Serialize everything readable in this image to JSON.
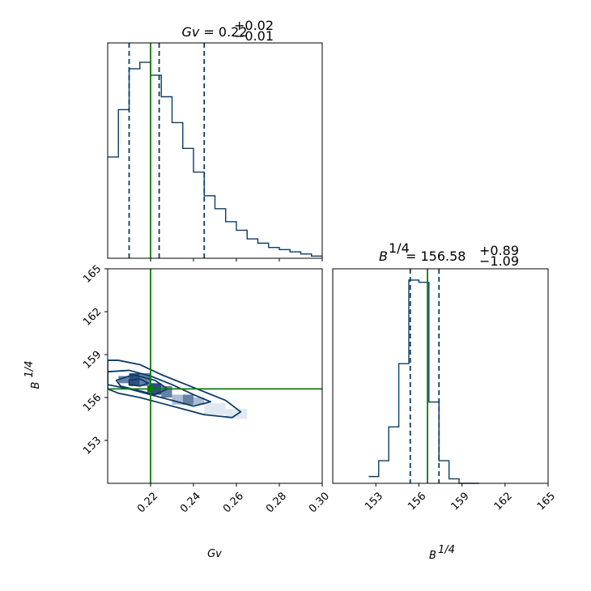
{
  "colors": {
    "hist": "#0b3c66",
    "contour": "#0b3c66",
    "truth": "#0a7a0a",
    "quantile": "#0b3c66",
    "shade_dark": "#08306b",
    "shade_mid": "#4a6b94",
    "shade_light": "#9fb3cc",
    "shade_faint": "#dbe4ee"
  },
  "chart_data": [
    {
      "type": "histogram",
      "panel": "Gv-marginal",
      "title": {
        "prefix": "Gv",
        "value": "0.22",
        "plus": "+0.02",
        "minus": "−0.01"
      },
      "xlim": [
        0.2,
        0.3
      ],
      "truth": 0.22,
      "quantiles": [
        0.21,
        0.224,
        0.245
      ],
      "bin_edges": [
        0.2,
        0.205,
        0.21,
        0.215,
        0.22,
        0.225,
        0.23,
        0.235,
        0.24,
        0.245,
        0.25,
        0.255,
        0.26,
        0.265,
        0.27,
        0.275,
        0.28,
        0.285,
        0.29,
        0.295,
        0.3
      ],
      "counts": [
        47,
        69,
        88,
        91,
        85,
        75,
        63,
        51,
        40,
        29,
        23,
        17,
        13,
        9,
        7,
        5,
        4,
        3,
        2,
        1
      ],
      "ymax": 100
    },
    {
      "type": "histogram",
      "panel": "B-marginal",
      "title": {
        "prefix": "B",
        "superscript": "1/4",
        "value": "156.58",
        "plus": "+0.89",
        "minus": "−1.09"
      },
      "xlim": [
        150,
        165
      ],
      "xticks": [
        153,
        156,
        159,
        162,
        165
      ],
      "xlabel": "B",
      "xlabel_sup": "1/4",
      "truth": 156.6,
      "quantiles": [
        155.4,
        157.4
      ],
      "bin_edges": [
        152.5,
        153.2,
        153.9,
        154.6,
        155.3,
        156.0,
        156.7,
        157.4,
        158.1,
        158.8,
        159.5,
        160.2
      ],
      "counts": [
        3,
        10,
        25,
        53,
        90,
        89,
        36,
        10,
        2,
        0,
        0
      ],
      "ymax": 95
    },
    {
      "type": "contour",
      "panel": "joint",
      "xlim": [
        0.2,
        0.3
      ],
      "ylim": [
        150,
        165
      ],
      "xticks": [
        0.22,
        0.24,
        0.26,
        0.28,
        0.3
      ],
      "xtick_labels": [
        "0.22",
        "0.24",
        "0.26",
        "0.28",
        "0.30"
      ],
      "yticks": [
        153,
        156,
        159,
        162,
        165
      ],
      "xlabel": "Gv",
      "ylabel": "B",
      "ylabel_sup": "1/4",
      "truth": {
        "x": 0.22,
        "y": 156.6
      },
      "density_cells": [
        {
          "x0": 0.205,
          "x1": 0.21,
          "y0": 157.0,
          "y1": 157.5,
          "level": "mid"
        },
        {
          "x0": 0.21,
          "x1": 0.215,
          "y0": 156.8,
          "y1": 157.7,
          "level": "dark"
        },
        {
          "x0": 0.215,
          "x1": 0.22,
          "y0": 156.8,
          "y1": 157.7,
          "level": "mid"
        },
        {
          "x0": 0.22,
          "x1": 0.225,
          "y0": 156.2,
          "y1": 157.0,
          "level": "dark"
        },
        {
          "x0": 0.225,
          "x1": 0.23,
          "y0": 156.0,
          "y1": 156.8,
          "level": "mid"
        },
        {
          "x0": 0.23,
          "x1": 0.235,
          "y0": 155.5,
          "y1": 156.2,
          "level": "light"
        },
        {
          "x0": 0.235,
          "x1": 0.24,
          "y0": 155.5,
          "y1": 156.2,
          "level": "mid"
        },
        {
          "x0": 0.24,
          "x1": 0.245,
          "y0": 155.5,
          "y1": 156.0,
          "level": "light"
        },
        {
          "x0": 0.245,
          "x1": 0.255,
          "y0": 154.8,
          "y1": 155.6,
          "level": "faint"
        },
        {
          "x0": 0.255,
          "x1": 0.265,
          "y0": 154.5,
          "y1": 155.2,
          "level": "faint"
        }
      ],
      "contours": [
        [
          [
            0.2,
            158.6
          ],
          [
            0.205,
            158.6
          ],
          [
            0.215,
            158.3
          ],
          [
            0.225,
            157.6
          ],
          [
            0.235,
            157.0
          ],
          [
            0.245,
            156.4
          ],
          [
            0.255,
            155.8
          ],
          [
            0.262,
            155.0
          ],
          [
            0.258,
            154.6
          ],
          [
            0.245,
            154.8
          ],
          [
            0.235,
            155.2
          ],
          [
            0.225,
            155.6
          ],
          [
            0.215,
            156.0
          ],
          [
            0.205,
            156.3
          ],
          [
            0.2,
            156.6
          ]
        ],
        [
          [
            0.2,
            157.8
          ],
          [
            0.21,
            157.9
          ],
          [
            0.22,
            157.5
          ],
          [
            0.23,
            156.9
          ],
          [
            0.24,
            156.2
          ],
          [
            0.248,
            155.7
          ],
          [
            0.24,
            155.4
          ],
          [
            0.23,
            155.8
          ],
          [
            0.22,
            156.2
          ],
          [
            0.21,
            156.6
          ],
          [
            0.2,
            156.9
          ]
        ],
        [
          [
            0.204,
            157.2
          ],
          [
            0.212,
            157.6
          ],
          [
            0.222,
            157.2
          ],
          [
            0.228,
            156.6
          ],
          [
            0.222,
            156.2
          ],
          [
            0.214,
            156.5
          ],
          [
            0.206,
            156.8
          ]
        ],
        [
          [
            0.21,
            157.2
          ],
          [
            0.215,
            157.3
          ],
          [
            0.219,
            157.0
          ],
          [
            0.215,
            156.8
          ],
          [
            0.21,
            156.9
          ]
        ]
      ]
    }
  ]
}
